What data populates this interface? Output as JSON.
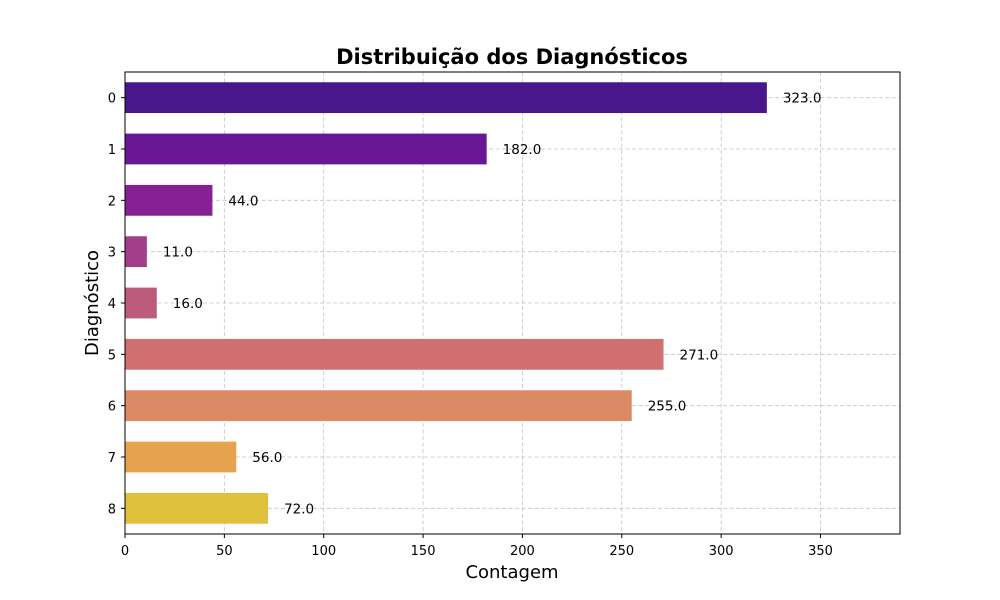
{
  "chart_data": {
    "type": "bar",
    "orientation": "horizontal",
    "title": "Distribuição dos Diagnósticos",
    "xlabel": "Contagem",
    "ylabel": "Diagnóstico",
    "categories": [
      "0",
      "1",
      "2",
      "3",
      "4",
      "5",
      "6",
      "7",
      "8"
    ],
    "values": [
      323.0,
      182.0,
      44.0,
      11.0,
      16.0,
      271.0,
      255.0,
      56.0,
      72.0
    ],
    "data_labels": [
      "323.0",
      "182.0",
      "44.0",
      "11.0",
      "16.0",
      "271.0",
      "255.0",
      "56.0",
      "72.0"
    ],
    "colors": [
      "#48178c",
      "#6a1795",
      "#862094",
      "#a33e8a",
      "#bd5b7d",
      "#d06f6f",
      "#dc8a63",
      "#e5a34e",
      "#dfc13d"
    ],
    "xlim": [
      0,
      390
    ],
    "xticks": [
      0,
      50,
      100,
      150,
      200,
      250,
      300,
      350
    ],
    "xtick_labels": [
      "0",
      "50",
      "100",
      "150",
      "200",
      "250",
      "300",
      "350"
    ],
    "grid": true
  }
}
